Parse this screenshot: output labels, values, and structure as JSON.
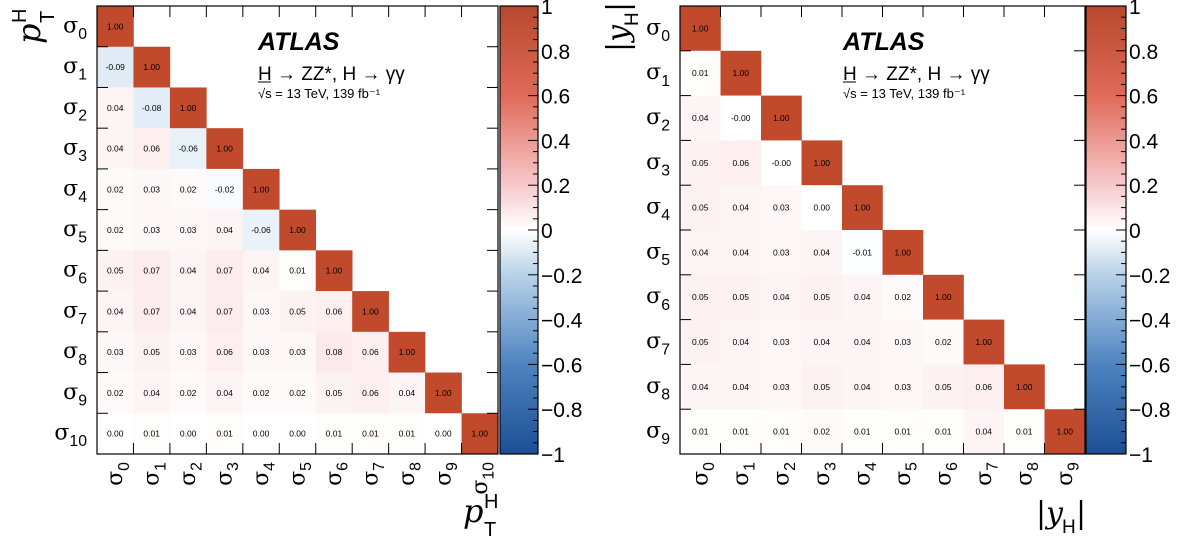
{
  "experiment_label": "ATLAS",
  "process_label": "H → ZZ*, H → γγ",
  "condition_label": "√s = 13 TeV, 139 fb⁻¹",
  "colorbar_tick_labels": [
    "1",
    "0.8",
    "0.6",
    "0.4",
    "0.2",
    "0",
    "−0.2",
    "−0.4",
    "−0.6",
    "−0.8",
    "−1"
  ],
  "chart_data": [
    {
      "type": "heatmap",
      "variable_label": "p_T^H",
      "row_labels": [
        "σ0",
        "σ1",
        "σ2",
        "σ3",
        "σ4",
        "σ5",
        "σ6",
        "σ7",
        "σ8",
        "σ9",
        "σ10"
      ],
      "col_labels": [
        "σ0",
        "σ1",
        "σ2",
        "σ3",
        "σ4",
        "σ5",
        "σ6",
        "σ7",
        "σ8",
        "σ9",
        "σ10"
      ],
      "colorbar_range": [
        -1,
        1
      ],
      "matrix_lower_triangle": [
        [
          "1.00"
        ],
        [
          "-0.09",
          "1.00"
        ],
        [
          "0.04",
          "-0.08",
          "1.00"
        ],
        [
          "0.04",
          "0.06",
          "-0.06",
          "1.00"
        ],
        [
          "0.02",
          "0.03",
          "0.02",
          "-0.02",
          "1.00"
        ],
        [
          "0.02",
          "0.03",
          "0.03",
          "0.04",
          "-0.06",
          "1.00"
        ],
        [
          "0.05",
          "0.07",
          "0.04",
          "0.07",
          "0.04",
          "0.01",
          "1.00"
        ],
        [
          "0.04",
          "0.07",
          "0.04",
          "0.07",
          "0.03",
          "0.05",
          "0.06",
          "1.00"
        ],
        [
          "0.03",
          "0.05",
          "0.03",
          "0.06",
          "0.03",
          "0.03",
          "0.08",
          "0.06",
          "1.00"
        ],
        [
          "0.02",
          "0.04",
          "0.02",
          "0.04",
          "0.02",
          "0.02",
          "0.05",
          "0.06",
          "0.04",
          "1.00"
        ],
        [
          "0.00",
          "0.01",
          "0.00",
          "0.01",
          "0.00",
          "0.00",
          "0.01",
          "0.01",
          "0.01",
          "0.00",
          "1.00"
        ]
      ]
    },
    {
      "type": "heatmap",
      "variable_label": "|y_H|",
      "row_labels": [
        "σ0",
        "σ1",
        "σ2",
        "σ3",
        "σ4",
        "σ5",
        "σ6",
        "σ7",
        "σ8",
        "σ9"
      ],
      "col_labels": [
        "σ0",
        "σ1",
        "σ2",
        "σ3",
        "σ4",
        "σ5",
        "σ6",
        "σ7",
        "σ8",
        "σ9"
      ],
      "colorbar_range": [
        -1,
        1
      ],
      "matrix_lower_triangle": [
        [
          "1.00"
        ],
        [
          "0.01",
          "1.00"
        ],
        [
          "0.04",
          "-0.00",
          "1.00"
        ],
        [
          "0.05",
          "0.06",
          "-0.00",
          "1.00"
        ],
        [
          "0.05",
          "0.04",
          "0.03",
          "0.00",
          "1.00"
        ],
        [
          "0.04",
          "0.04",
          "0.03",
          "0.04",
          "-0.01",
          "1.00"
        ],
        [
          "0.05",
          "0.05",
          "0.04",
          "0.05",
          "0.04",
          "0.02",
          "1.00"
        ],
        [
          "0.05",
          "0.04",
          "0.03",
          "0.04",
          "0.04",
          "0.03",
          "0.02",
          "1.00"
        ],
        [
          "0.04",
          "0.04",
          "0.03",
          "0.05",
          "0.04",
          "0.03",
          "0.05",
          "0.06",
          "1.00"
        ],
        [
          "0.01",
          "0.01",
          "0.01",
          "0.02",
          "0.01",
          "0.01",
          "0.01",
          "0.04",
          "0.01",
          "1.00"
        ]
      ]
    }
  ]
}
